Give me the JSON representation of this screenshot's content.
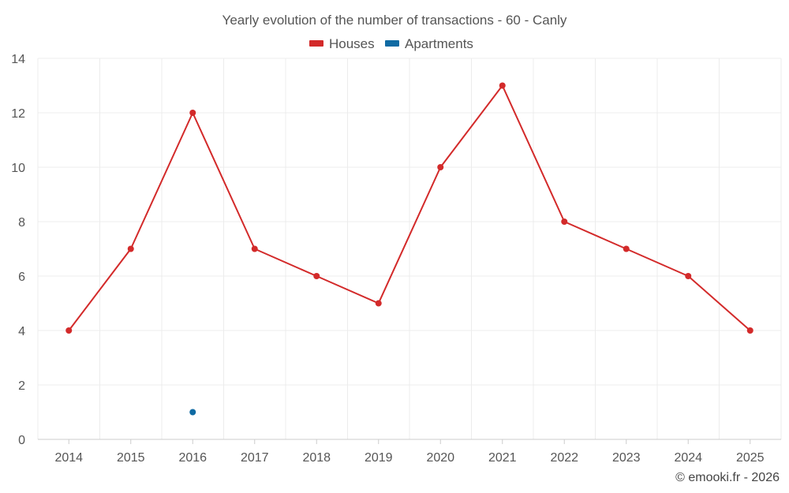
{
  "chart_data": {
    "type": "line",
    "title": "Yearly evolution of the number of transactions - 60 - Canly",
    "categories": [
      "2014",
      "2015",
      "2016",
      "2017",
      "2018",
      "2019",
      "2020",
      "2021",
      "2022",
      "2023",
      "2024",
      "2025"
    ],
    "series": [
      {
        "name": "Houses",
        "color": "#d32a2a",
        "values": [
          4,
          7,
          12,
          7,
          6,
          5,
          10,
          13,
          8,
          7,
          6,
          4
        ]
      },
      {
        "name": "Apartments",
        "color": "#0f6aa3",
        "values": [
          null,
          null,
          1,
          null,
          null,
          null,
          null,
          null,
          null,
          null,
          null,
          null
        ]
      }
    ],
    "ylim": [
      0,
      14
    ],
    "yticks": [
      0,
      2,
      4,
      6,
      8,
      10,
      12,
      14
    ],
    "grid": true,
    "legend": "top-center",
    "xlabel": "",
    "ylabel": ""
  },
  "credit": "© emooki.fr - 2026"
}
